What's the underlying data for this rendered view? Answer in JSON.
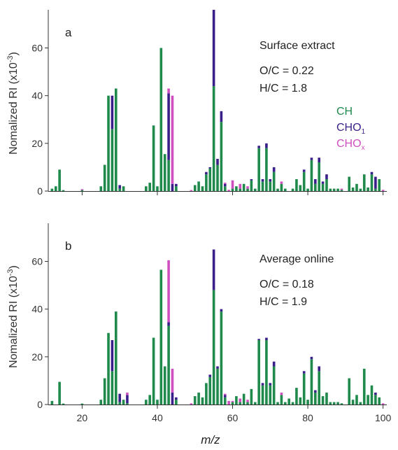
{
  "chart_data": [
    {
      "type": "bar",
      "stacked": true,
      "panel_label": "a",
      "title": "Surface extract",
      "annotations": [
        "O/C = 0.22",
        "H/C = 1.8"
      ],
      "ylabel": "Nomalized RI (x10",
      "ylabel_sup": "-3",
      "ylabel_end": ")",
      "ylim": [
        0,
        76
      ],
      "yticks": [
        0,
        20,
        40,
        60
      ],
      "xlim": [
        11,
        101
      ],
      "xticks": [
        20,
        40,
        60,
        80,
        100
      ],
      "show_x_tick_labels": false,
      "legend_placement": "right",
      "series": [
        {
          "name": "CH",
          "color": "#1f8a4c"
        },
        {
          "name": "CHO",
          "sub": "1",
          "color": "#3a1f8a"
        },
        {
          "name": "CHO",
          "sub": "x",
          "color": "#d04fc0"
        }
      ],
      "bars": [
        [
          12,
          1,
          0,
          0
        ],
        [
          13,
          2,
          0,
          0
        ],
        [
          14,
          9,
          0,
          0
        ],
        [
          15,
          0.4,
          0,
          0
        ],
        [
          20,
          0.4,
          0,
          0.4
        ],
        [
          25,
          2,
          0,
          0
        ],
        [
          26,
          11,
          0,
          0
        ],
        [
          27,
          40,
          0,
          0
        ],
        [
          28,
          26,
          14,
          0
        ],
        [
          29,
          43,
          0,
          0
        ],
        [
          30,
          1,
          1.5,
          0
        ],
        [
          31,
          2,
          0,
          0
        ],
        [
          37,
          2,
          0,
          0
        ],
        [
          38,
          3.5,
          0,
          0
        ],
        [
          39,
          27.5,
          0,
          0
        ],
        [
          40,
          2,
          0,
          0
        ],
        [
          41,
          60,
          0,
          0
        ],
        [
          42,
          15.5,
          0,
          0
        ],
        [
          43,
          13,
          28,
          2
        ],
        [
          44,
          0,
          3,
          37
        ],
        [
          45,
          2,
          1,
          0
        ],
        [
          49,
          0,
          0,
          0.4
        ],
        [
          50,
          2.5,
          0,
          0
        ],
        [
          51,
          4,
          0,
          0
        ],
        [
          52,
          2,
          0,
          0
        ],
        [
          53,
          7,
          1,
          0
        ],
        [
          54,
          9.5,
          0.5,
          0
        ],
        [
          55,
          44,
          32,
          0
        ],
        [
          56,
          11,
          2.5,
          0
        ],
        [
          57,
          29,
          4.5,
          0
        ],
        [
          58,
          2,
          1,
          0.5
        ],
        [
          59,
          0,
          0,
          0.5
        ],
        [
          60,
          1,
          0,
          3.5
        ],
        [
          61,
          2,
          0,
          0
        ],
        [
          62,
          1,
          0,
          2
        ],
        [
          63,
          3,
          0,
          0
        ],
        [
          64,
          1,
          0,
          1
        ],
        [
          65,
          4.5,
          0.5,
          0
        ],
        [
          66,
          1,
          0,
          0
        ],
        [
          67,
          18,
          1,
          0
        ],
        [
          68,
          4,
          1,
          0
        ],
        [
          69,
          18,
          2,
          0
        ],
        [
          70,
          4,
          1,
          0
        ],
        [
          71,
          8,
          2,
          0
        ],
        [
          72,
          1,
          0,
          0
        ],
        [
          73,
          3,
          0,
          1
        ],
        [
          74,
          1,
          0,
          0
        ],
        [
          75,
          0,
          0,
          0
        ],
        [
          76,
          1,
          0,
          0
        ],
        [
          77,
          5,
          0,
          0
        ],
        [
          78,
          2.5,
          0,
          0
        ],
        [
          79,
          8,
          1,
          0
        ],
        [
          80,
          1,
          0,
          0
        ],
        [
          81,
          13,
          1,
          0
        ],
        [
          82,
          3,
          2,
          0
        ],
        [
          83,
          12,
          2,
          0
        ],
        [
          84,
          3,
          1,
          0
        ],
        [
          85,
          5,
          2,
          0
        ],
        [
          86,
          1,
          0,
          0
        ],
        [
          87,
          1,
          0,
          0
        ],
        [
          88,
          1,
          0,
          0
        ],
        [
          89,
          0.5,
          0,
          0.5
        ],
        [
          91,
          6,
          0,
          0
        ],
        [
          92,
          1.5,
          0,
          0
        ],
        [
          93,
          3,
          0,
          0
        ],
        [
          94,
          1,
          0,
          0
        ],
        [
          95,
          7,
          0,
          0
        ],
        [
          96,
          1.5,
          0,
          0
        ],
        [
          97,
          7,
          1,
          0
        ],
        [
          98,
          1,
          5,
          0
        ],
        [
          99,
          5,
          0,
          0
        ],
        [
          100,
          0,
          0,
          0.5
        ]
      ]
    },
    {
      "type": "bar",
      "stacked": true,
      "panel_label": "b",
      "title": "Average online",
      "annotations": [
        "O/C = 0.18",
        "H/C = 1.9"
      ],
      "ylabel": "Nomalized RI (x10",
      "ylabel_sup": "-3",
      "ylabel_end": ")",
      "xlabel": "m/z",
      "ylim": [
        0,
        76
      ],
      "yticks": [
        0,
        20,
        40,
        60
      ],
      "xlim": [
        11,
        101
      ],
      "xticks": [
        20,
        40,
        60,
        80,
        100
      ],
      "xtick_labels": [
        "20",
        "40",
        "60",
        "80",
        "100"
      ],
      "show_x_tick_labels": true,
      "series": [
        {
          "name": "CH",
          "color": "#1f8a4c"
        },
        {
          "name": "CHO",
          "sub": "1",
          "color": "#3a1f8a"
        },
        {
          "name": "CHO",
          "sub": "x",
          "color": "#d04fc0"
        }
      ],
      "bars": [
        [
          12,
          1.5,
          0,
          0
        ],
        [
          14,
          9.5,
          0,
          0
        ],
        [
          15,
          0.4,
          0,
          0
        ],
        [
          20,
          0.4,
          0,
          0
        ],
        [
          25,
          2,
          0,
          0
        ],
        [
          26,
          11,
          0,
          0
        ],
        [
          27,
          30,
          0,
          0
        ],
        [
          28,
          14,
          13,
          0
        ],
        [
          29,
          39,
          0,
          0
        ],
        [
          30,
          1,
          3.5,
          0
        ],
        [
          31,
          2,
          0,
          0
        ],
        [
          32,
          0.5,
          3.5,
          1
        ],
        [
          37,
          2,
          0,
          0
        ],
        [
          38,
          4,
          0,
          0
        ],
        [
          39,
          28,
          0,
          0
        ],
        [
          40,
          2,
          0,
          0
        ],
        [
          41,
          56.5,
          0,
          0
        ],
        [
          42,
          16,
          0,
          0
        ],
        [
          43,
          33,
          1.5,
          26
        ],
        [
          44,
          0,
          5,
          10
        ],
        [
          45,
          2,
          1,
          0
        ],
        [
          49,
          0,
          0,
          0.5
        ],
        [
          50,
          3.5,
          0,
          0
        ],
        [
          51,
          5,
          0,
          0
        ],
        [
          52,
          3,
          0,
          0
        ],
        [
          53,
          9,
          0,
          0
        ],
        [
          54,
          11.5,
          1,
          0
        ],
        [
          55,
          48,
          17,
          0
        ],
        [
          56,
          15,
          1,
          0
        ],
        [
          57,
          39,
          1,
          0
        ],
        [
          58,
          3,
          1,
          0.5
        ],
        [
          59,
          0,
          0,
          1.5
        ],
        [
          60,
          1,
          0,
          0.5
        ],
        [
          61,
          3.5,
          0,
          0
        ],
        [
          62,
          1,
          0,
          1.5
        ],
        [
          63,
          4.5,
          0,
          0
        ],
        [
          64,
          1,
          0,
          1
        ],
        [
          65,
          6.5,
          0,
          0
        ],
        [
          66,
          1,
          0,
          0
        ],
        [
          67,
          27,
          0.5,
          0
        ],
        [
          68,
          8,
          1,
          0
        ],
        [
          69,
          27,
          1,
          0
        ],
        [
          70,
          8,
          1,
          0
        ],
        [
          71,
          16,
          2,
          0
        ],
        [
          72,
          1,
          0,
          0
        ],
        [
          73,
          4,
          0,
          1
        ],
        [
          74,
          1,
          0,
          0
        ],
        [
          75,
          2.5,
          0,
          0
        ],
        [
          76,
          1,
          0,
          0
        ],
        [
          77,
          7,
          0,
          0
        ],
        [
          78,
          3,
          0,
          0
        ],
        [
          79,
          13,
          1,
          0
        ],
        [
          80,
          2,
          0,
          0
        ],
        [
          81,
          19,
          1,
          0
        ],
        [
          82,
          5,
          1,
          0
        ],
        [
          83,
          14,
          2,
          0
        ],
        [
          84,
          3.5,
          0,
          0
        ],
        [
          85,
          5,
          0,
          0
        ],
        [
          86,
          1,
          0,
          0
        ],
        [
          87,
          1,
          0,
          0
        ],
        [
          88,
          1,
          0,
          0
        ],
        [
          89,
          0.5,
          0,
          0
        ],
        [
          91,
          11,
          0,
          0
        ],
        [
          92,
          2,
          0,
          0
        ],
        [
          93,
          4,
          0,
          0
        ],
        [
          94,
          1,
          0,
          0
        ],
        [
          95,
          15,
          0,
          0
        ],
        [
          96,
          4,
          0,
          0
        ],
        [
          97,
          8,
          0,
          0
        ],
        [
          98,
          4,
          1,
          0
        ],
        [
          99,
          3,
          0,
          0
        ],
        [
          100,
          0,
          0,
          0.5
        ]
      ]
    }
  ]
}
